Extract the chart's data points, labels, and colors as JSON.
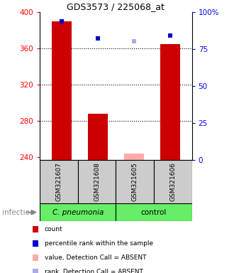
{
  "title": "GDS3573 / 225068_at",
  "samples": [
    "GSM321607",
    "GSM321608",
    "GSM321605",
    "GSM321606"
  ],
  "bar_values": [
    390,
    288,
    244,
    365
  ],
  "bar_absent": [
    false,
    false,
    true,
    false
  ],
  "bar_color_present": "#cc0000",
  "bar_color_absent": "#ffaaaa",
  "percentile_values": [
    390,
    371,
    368,
    374
  ],
  "percentile_absent": [
    false,
    false,
    true,
    false
  ],
  "percentile_color_present": "#0000cc",
  "percentile_color_absent": "#aaaaee",
  "ymin": 237,
  "ymax": 400,
  "yticks": [
    240,
    280,
    320,
    360,
    400
  ],
  "ytick_labels": [
    "240",
    "280",
    "320",
    "360",
    "400"
  ],
  "grid_ticks": [
    280,
    320,
    360
  ],
  "y2ticks": [
    0,
    25,
    50,
    75,
    100
  ],
  "y2labels": [
    "0",
    "25",
    "50",
    "75",
    "100%"
  ],
  "group_label_left": "C. pneumonia",
  "group_label_right": "control",
  "group_color": "#66ee66",
  "sample_box_color": "#cccccc",
  "infection_label": "infection",
  "legend": [
    {
      "color": "#cc0000",
      "label": "count"
    },
    {
      "color": "#0000cc",
      "label": "percentile rank within the sample"
    },
    {
      "color": "#ffaaaa",
      "label": "value, Detection Call = ABSENT"
    },
    {
      "color": "#aaaaee",
      "label": "rank, Detection Call = ABSENT"
    }
  ]
}
